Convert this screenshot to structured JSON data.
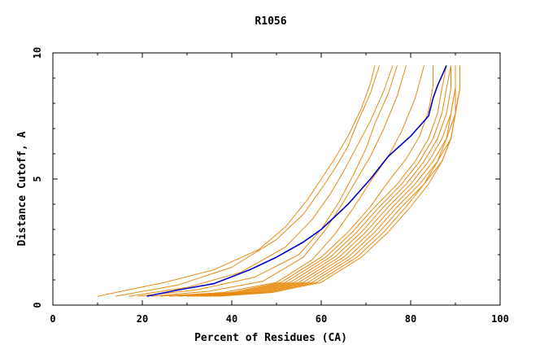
{
  "chart_data": {
    "type": "line",
    "title": "R1056",
    "xlabel": "Percent of Residues (CA)",
    "ylabel": "Distance Cutoff, A",
    "xlim": [
      0,
      100
    ],
    "ylim": [
      0,
      10
    ],
    "xticks": [
      "0",
      "20",
      "40",
      "60",
      "80",
      "100"
    ],
    "yticks": [
      "0",
      "5",
      "10"
    ],
    "grid": false,
    "legend": "none",
    "colors": {
      "highlight": "#0000cc",
      "others": "#e88a10"
    },
    "highlight_series": {
      "x": [
        21,
        28,
        36,
        44,
        50,
        56,
        60,
        66,
        71,
        75,
        80,
        84,
        85,
        86,
        87,
        88
      ],
      "y": [
        0.35,
        0.6,
        0.85,
        1.4,
        1.9,
        2.5,
        3.0,
        4.0,
        5.0,
        5.9,
        6.7,
        7.5,
        8.2,
        8.7,
        9.1,
        9.5
      ]
    },
    "series": [
      {
        "x": [
          10,
          25,
          36,
          46,
          52,
          57,
          60,
          63,
          66,
          69,
          71,
          72
        ],
        "y": [
          0.35,
          0.9,
          1.4,
          2.2,
          3.1,
          4.2,
          5.0,
          5.8,
          6.7,
          7.8,
          8.8,
          9.5
        ]
      },
      {
        "x": [
          14,
          28,
          40,
          50,
          56,
          60,
          63,
          66,
          68,
          71,
          73
        ],
        "y": [
          0.35,
          0.8,
          1.5,
          2.6,
          3.6,
          4.6,
          5.4,
          6.3,
          7.2,
          8.4,
          9.5
        ]
      },
      {
        "x": [
          17,
          30,
          42,
          52,
          58,
          62,
          65,
          68,
          71,
          74,
          76
        ],
        "y": [
          0.35,
          0.7,
          1.3,
          2.3,
          3.4,
          4.4,
          5.3,
          6.3,
          7.3,
          8.5,
          9.5
        ]
      },
      {
        "x": [
          19,
          32,
          45,
          55,
          60,
          64,
          67,
          70,
          72,
          75,
          77
        ],
        "y": [
          0.35,
          0.6,
          1.1,
          2.0,
          3.0,
          4.1,
          5.1,
          6.2,
          7.2,
          8.4,
          9.5
        ]
      },
      {
        "x": [
          22,
          35,
          47,
          56,
          61,
          65,
          68,
          71,
          74,
          77,
          79
        ],
        "y": [
          0.35,
          0.55,
          0.95,
          1.9,
          3.0,
          4.1,
          5.0,
          5.9,
          7.0,
          8.3,
          9.5
        ]
      },
      {
        "x": [
          24,
          38,
          50,
          58,
          63,
          67,
          71,
          75,
          78,
          81,
          83
        ],
        "y": [
          0.35,
          0.5,
          0.9,
          1.8,
          2.8,
          3.8,
          4.9,
          5.9,
          6.9,
          8.2,
          9.5
        ]
      },
      {
        "x": [
          26,
          40,
          51,
          60,
          66,
          71,
          75,
          79,
          82,
          84,
          85,
          85
        ],
        "y": [
          0.35,
          0.5,
          0.9,
          1.9,
          2.9,
          3.9,
          4.9,
          5.8,
          6.7,
          7.7,
          8.7,
          9.5
        ]
      },
      {
        "x": [
          28,
          41,
          52,
          61,
          67,
          72,
          77,
          81,
          84,
          86,
          87,
          88
        ],
        "y": [
          0.35,
          0.5,
          0.9,
          1.9,
          2.9,
          3.9,
          4.8,
          5.7,
          6.6,
          7.6,
          8.6,
          9.5
        ]
      },
      {
        "x": [
          30,
          42,
          53,
          62,
          68,
          73,
          78,
          82,
          85,
          87,
          88,
          89
        ],
        "y": [
          0.35,
          0.5,
          0.9,
          1.9,
          2.9,
          3.9,
          4.8,
          5.7,
          6.6,
          7.6,
          8.6,
          9.5
        ]
      },
      {
        "x": [
          31,
          43,
          54,
          63,
          69,
          74,
          79,
          83,
          86,
          88,
          89,
          89
        ],
        "y": [
          0.35,
          0.5,
          0.9,
          1.9,
          2.9,
          3.9,
          4.8,
          5.7,
          6.6,
          7.6,
          8.6,
          9.5
        ]
      },
      {
        "x": [
          32,
          44,
          55,
          64,
          70,
          75,
          80,
          84,
          87,
          89,
          90,
          90
        ],
        "y": [
          0.35,
          0.5,
          0.9,
          1.9,
          2.9,
          3.9,
          4.8,
          5.7,
          6.6,
          7.6,
          8.6,
          9.5
        ]
      },
      {
        "x": [
          33,
          45,
          56,
          65,
          71,
          76,
          81,
          85,
          88,
          89,
          90,
          90
        ],
        "y": [
          0.35,
          0.5,
          0.9,
          1.9,
          2.9,
          3.9,
          4.8,
          5.7,
          6.6,
          7.6,
          8.6,
          9.5
        ]
      },
      {
        "x": [
          34,
          46,
          57,
          66,
          72,
          77,
          82,
          86,
          88,
          90,
          91,
          91
        ],
        "y": [
          0.35,
          0.5,
          0.9,
          1.9,
          2.9,
          3.9,
          4.8,
          5.7,
          6.6,
          7.6,
          8.6,
          9.5
        ]
      },
      {
        "x": [
          35,
          47,
          58,
          67,
          73,
          78,
          83,
          86,
          89,
          90,
          91,
          91
        ],
        "y": [
          0.35,
          0.5,
          0.9,
          1.9,
          2.9,
          3.9,
          4.8,
          5.7,
          6.6,
          7.6,
          8.6,
          9.5
        ]
      },
      {
        "x": [
          36,
          48,
          59,
          68,
          74,
          79,
          83,
          87,
          89,
          90,
          91,
          91
        ],
        "y": [
          0.35,
          0.5,
          0.9,
          1.9,
          2.9,
          3.9,
          4.8,
          5.7,
          6.6,
          7.6,
          8.6,
          9.5
        ]
      },
      {
        "x": [
          37,
          49,
          60,
          69,
          75,
          80,
          84,
          87,
          89,
          90,
          90,
          90
        ],
        "y": [
          0.35,
          0.5,
          0.9,
          1.9,
          2.9,
          3.9,
          4.8,
          5.7,
          6.6,
          7.6,
          8.6,
          9.5
        ]
      }
    ]
  }
}
